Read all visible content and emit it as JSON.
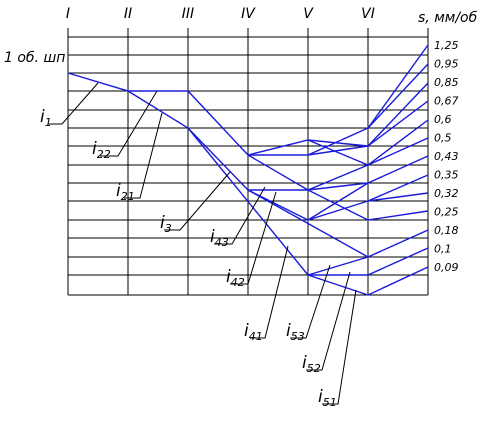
{
  "columns": [
    "I",
    "II",
    "III",
    "IV",
    "V",
    "VI"
  ],
  "unit": "s, мм/об",
  "spindle_label": "1 об. шп",
  "feeds": [
    "1,25",
    "0,95",
    "0,85",
    "0,67",
    "0,6",
    "0,5",
    "0,43",
    "0,35",
    "0,32",
    "0,25",
    "0,18",
    "0,1",
    "0,09"
  ],
  "ratios": [
    {
      "main": "i",
      "sub": "1"
    },
    {
      "main": "i",
      "sub": "22"
    },
    {
      "main": "i",
      "sub": "21"
    },
    {
      "main": "i",
      "sub": "3"
    },
    {
      "main": "i",
      "sub": "43"
    },
    {
      "main": "i",
      "sub": "42"
    },
    {
      "main": "i",
      "sub": "41"
    },
    {
      "main": "i",
      "sub": "53"
    },
    {
      "main": "i",
      "sub": "52"
    },
    {
      "main": "i",
      "sub": "51"
    }
  ]
}
